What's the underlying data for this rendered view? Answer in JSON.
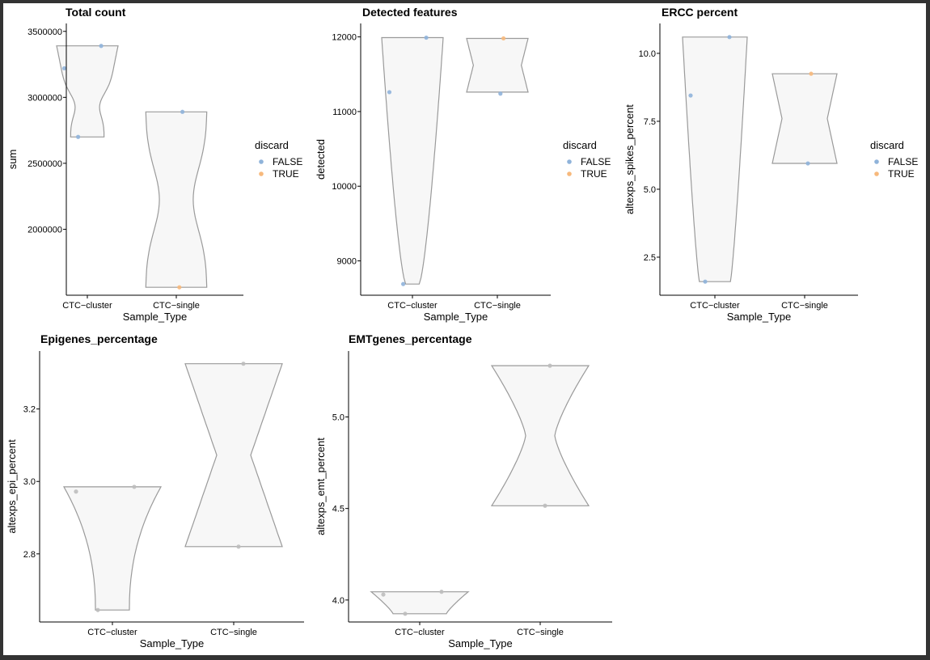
{
  "chart_data": [
    {
      "type": "violin",
      "title": "Total count",
      "xlabel": "Sample_Type",
      "ylabel": "sum",
      "categories": [
        "CTC−cluster",
        "CTC−single"
      ],
      "yticks": [
        2000000,
        2500000,
        3000000,
        3500000
      ],
      "ytick_labels": [
        "2000000",
        "2500000",
        "3000000",
        "3500000"
      ],
      "ylim": [
        1500000,
        3560000
      ],
      "violin_range": [
        [
          2700000,
          3390000
        ],
        [
          1560000,
          2890000
        ]
      ],
      "points": [
        {
          "category": 0,
          "y": 3220000,
          "discard": "FALSE"
        },
        {
          "category": 0,
          "y": 3390000,
          "discard": "FALSE"
        },
        {
          "category": 0,
          "y": 2700000,
          "discard": "FALSE"
        },
        {
          "category": 1,
          "y": 2890000,
          "discard": "FALSE"
        },
        {
          "category": 1,
          "y": 1560000,
          "discard": "TRUE"
        }
      ],
      "legend": {
        "title": "discard",
        "entries": [
          "FALSE",
          "TRUE"
        ]
      }
    },
    {
      "type": "violin",
      "title": "Detected features",
      "xlabel": "Sample_Type",
      "ylabel": "detected",
      "categories": [
        "CTC−cluster",
        "CTC−single"
      ],
      "yticks": [
        9000,
        10000,
        11000,
        12000
      ],
      "ytick_labels": [
        "9000",
        "10000",
        "11000",
        "12000"
      ],
      "ylim": [
        8540,
        12180
      ],
      "violin_range": [
        [
          8690,
          11990
        ],
        [
          11260,
          11980
        ]
      ],
      "points": [
        {
          "category": 0,
          "y": 11260,
          "discard": "FALSE"
        },
        {
          "category": 0,
          "y": 11990,
          "discard": "FALSE"
        },
        {
          "category": 0,
          "y": 8690,
          "discard": "FALSE"
        },
        {
          "category": 1,
          "y": 11980,
          "discard": "TRUE"
        },
        {
          "category": 1,
          "y": 11240,
          "discard": "FALSE"
        }
      ],
      "legend": {
        "title": "discard",
        "entries": [
          "FALSE",
          "TRUE"
        ]
      }
    },
    {
      "type": "violin",
      "title": "ERCC percent",
      "xlabel": "Sample_Type",
      "ylabel": "altexps_spikes_percent",
      "categories": [
        "CTC−cluster",
        "CTC−single"
      ],
      "yticks": [
        2.5,
        5.0,
        7.5,
        10.0
      ],
      "ytick_labels": [
        "2.5",
        "5.0",
        "7.5",
        "10.0"
      ],
      "ylim": [
        1.1,
        11.1
      ],
      "violin_range": [
        [
          1.6,
          10.6
        ],
        [
          5.95,
          9.25
        ]
      ],
      "points": [
        {
          "category": 0,
          "y": 8.45,
          "discard": "FALSE"
        },
        {
          "category": 0,
          "y": 10.6,
          "discard": "FALSE"
        },
        {
          "category": 0,
          "y": 1.6,
          "discard": "FALSE"
        },
        {
          "category": 1,
          "y": 9.25,
          "discard": "TRUE"
        },
        {
          "category": 1,
          "y": 5.95,
          "discard": "FALSE"
        }
      ],
      "legend": {
        "title": "discard",
        "entries": [
          "FALSE",
          "TRUE"
        ]
      }
    },
    {
      "type": "violin",
      "title": "Epigenes_percentage",
      "xlabel": "Sample_Type",
      "ylabel": "altexps_epi_percent",
      "categories": [
        "CTC−cluster",
        "CTC−single"
      ],
      "yticks": [
        2.8,
        3.0,
        3.2
      ],
      "ytick_labels": [
        "2.8",
        "3.0",
        "3.2"
      ],
      "ylim": [
        2.612,
        3.36
      ],
      "violin_range": [
        [
          2.645,
          2.985
        ],
        [
          2.82,
          3.325
        ]
      ],
      "points": [
        {
          "category": 0,
          "y": 2.972,
          "discard": "FALSE"
        },
        {
          "category": 0,
          "y": 2.985,
          "discard": "FALSE"
        },
        {
          "category": 0,
          "y": 2.645,
          "discard": "FALSE"
        },
        {
          "category": 1,
          "y": 3.325,
          "discard": "FALSE"
        },
        {
          "category": 1,
          "y": 2.82,
          "discard": "FALSE"
        }
      ]
    },
    {
      "type": "violin",
      "title": "EMTgenes_percentage",
      "xlabel": "Sample_Type",
      "ylabel": "altexps_emt_percent",
      "categories": [
        "CTC−cluster",
        "CTC−single"
      ],
      "yticks": [
        4.0,
        4.5,
        5.0
      ],
      "ytick_labels": [
        "4.0",
        "4.5",
        "5.0"
      ],
      "ylim": [
        3.88,
        5.36
      ],
      "violin_range": [
        [
          3.925,
          4.045
        ],
        [
          4.515,
          5.28
        ]
      ],
      "points": [
        {
          "category": 0,
          "y": 4.03,
          "discard": "FALSE"
        },
        {
          "category": 0,
          "y": 4.045,
          "discard": "FALSE"
        },
        {
          "category": 0,
          "y": 3.925,
          "discard": "FALSE"
        },
        {
          "category": 1,
          "y": 5.28,
          "discard": "FALSE"
        },
        {
          "category": 1,
          "y": 4.515,
          "discard": "FALSE"
        }
      ]
    }
  ],
  "colors": {
    "FALSE": "#8fb3da",
    "TRUE": "#f7b97c",
    "neutral_point": "#bdbdbd",
    "violin_fill": "#f7f7f7",
    "violin_stroke": "#9a9a9a"
  }
}
